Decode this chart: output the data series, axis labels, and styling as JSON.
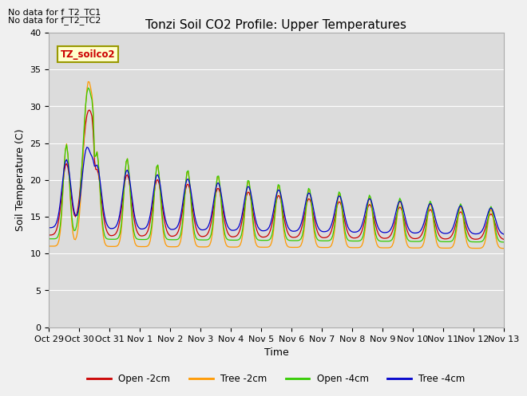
{
  "title": "Tonzi Soil CO2 Profile: Upper Temperatures",
  "xlabel": "Time",
  "ylabel": "Soil Temperature (C)",
  "ylim": [
    0,
    40
  ],
  "yticks": [
    0,
    5,
    10,
    15,
    20,
    25,
    30,
    35,
    40
  ],
  "plot_bg_color": "#dcdcdc",
  "fig_bg_color": "#f0f0f0",
  "annotations": [
    "No data for f_T2_TC1",
    "No data for f_T2_TC2"
  ],
  "legend_label": "TZ_soilco2",
  "series_labels": [
    "Open -2cm",
    "Tree -2cm",
    "Open -4cm",
    "Tree -4cm"
  ],
  "series_colors": [
    "#cc0000",
    "#ff9900",
    "#33cc00",
    "#0000cc"
  ],
  "x_tick_labels": [
    "Oct 29",
    "Oct 30",
    "Oct 31",
    "Nov 1",
    "Nov 2",
    "Nov 3",
    "Nov 4",
    "Nov 5",
    "Nov 6",
    "Nov 7",
    "Nov 8",
    "Nov 9",
    "Nov 10",
    "Nov 11",
    "Nov 12",
    "Nov 13"
  ],
  "title_fontsize": 11,
  "axis_fontsize": 9,
  "tick_fontsize": 8
}
